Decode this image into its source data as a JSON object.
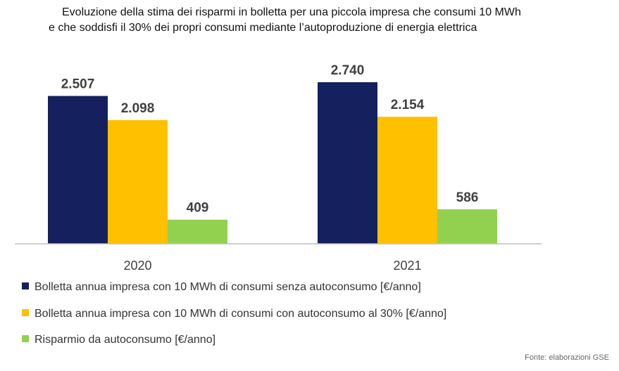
{
  "title_lines": [
    "Evoluzione della stima dei risparmi in bolletta per una piccola impresa che consumi 10 MWh",
    "e che soddisfi il 30% dei propri consumi mediante l’autoproduzione di energia elettrica"
  ],
  "source": "Fonte: elaborazioni GSE",
  "colors": {
    "series1": "#14215e",
    "series2": "#ffc000",
    "series3": "#92d050",
    "axis": "#bfbfbf"
  },
  "chart_data": {
    "type": "bar",
    "categories": [
      "2020",
      "2021"
    ],
    "series": [
      {
        "name": "Bolletta annua impresa con 10 MWh di consumi senza autoconsumo [€/anno]",
        "values": [
          2507,
          2740
        ],
        "labels": [
          "2.507",
          "2.740"
        ]
      },
      {
        "name": "Bolletta annua impresa con 10 MWh di consumi con autoconsumo al 30% [€/anno]",
        "values": [
          2098,
          2154
        ],
        "labels": [
          "2.098",
          "2.154"
        ]
      },
      {
        "name": "Risparmio da autoconsumo [€/anno]",
        "values": [
          409,
          586
        ],
        "labels": [
          "409",
          "586"
        ]
      }
    ],
    "ylim": [
      0,
      2740
    ],
    "grid": false,
    "legend_position": "bottom"
  }
}
